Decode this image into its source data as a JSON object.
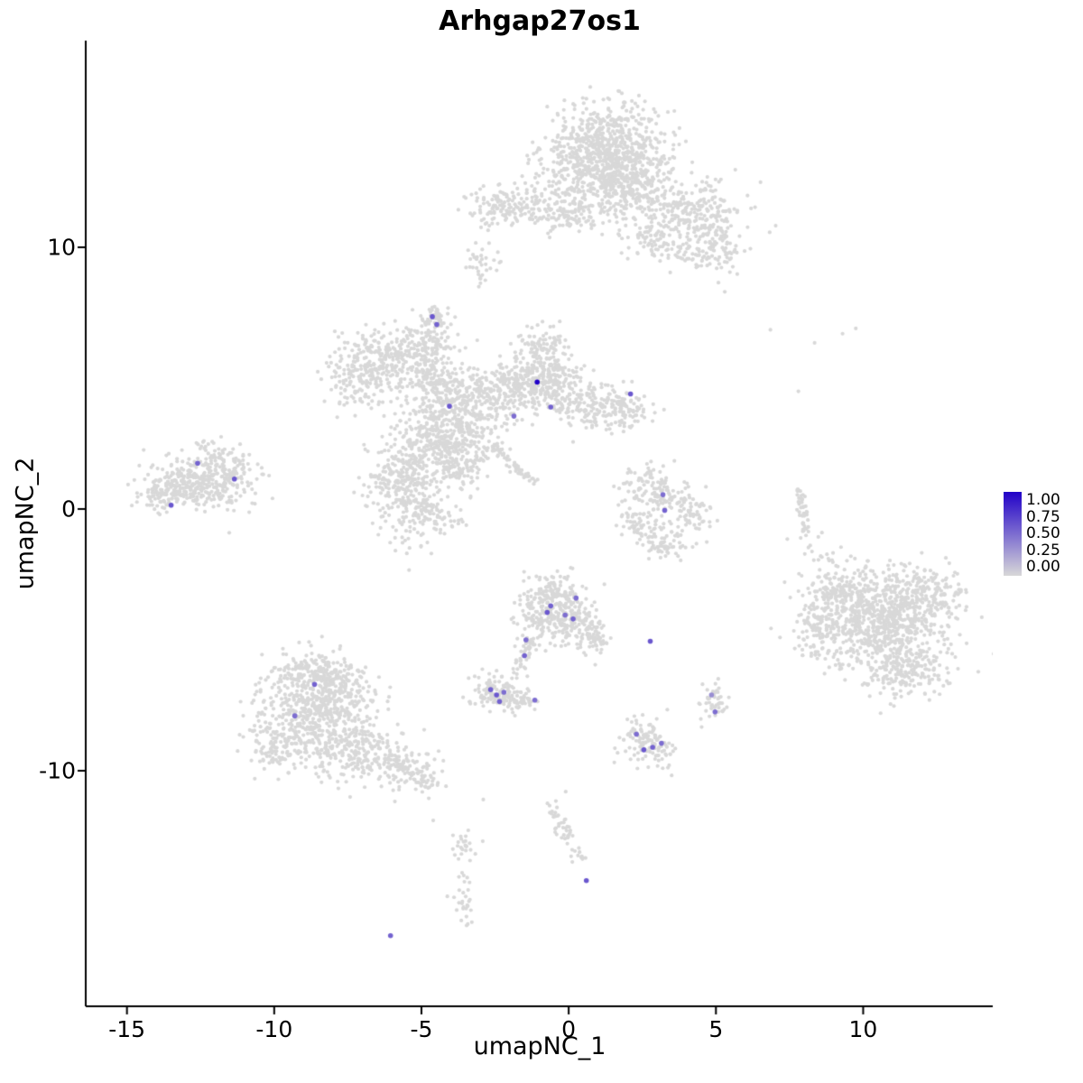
{
  "chart_data": {
    "type": "scatter",
    "title": "Arhgap27os1",
    "xlabel": "umapNC_1",
    "ylabel": "umapNC_2",
    "xlim": [
      -16.4,
      14.4
    ],
    "ylim": [
      -19.0,
      17.9
    ],
    "grid": false,
    "legend_position": "right",
    "x_ticks": {
      "values": [
        -15,
        -10,
        -5,
        0,
        5,
        10
      ],
      "labels": [
        "-15",
        "-10",
        "-5",
        "0",
        "5",
        "10"
      ]
    },
    "y_ticks": {
      "values": [
        10,
        0,
        -10
      ],
      "labels": [
        "10",
        "0",
        "-10"
      ]
    },
    "color_scale": {
      "min": 0.0,
      "max": 1.0,
      "low": "#D8D8D8",
      "high": "#2101C8",
      "legend_labels": [
        "1.00",
        "0.75",
        "0.50",
        "0.25",
        "0.00"
      ]
    },
    "style": {
      "point_color": "#D8D8D8",
      "point_radius": 2.1,
      "highlight_radius": 2.8,
      "axis_color": "#000000"
    },
    "clusters": [
      {
        "cx": 1.3,
        "cy": 13.8,
        "sx": 1.05,
        "sy": 0.85,
        "n": 650
      },
      {
        "cx": 1.0,
        "cy": 12.9,
        "sx": 0.9,
        "sy": 0.6,
        "n": 200
      },
      {
        "cx": 2.3,
        "cy": 12.3,
        "sx": 0.8,
        "sy": 0.6,
        "n": 220
      },
      {
        "cx": 4.3,
        "cy": 11.4,
        "sx": 0.85,
        "sy": 0.55,
        "n": 220
      },
      {
        "cx": 4.9,
        "cy": 9.9,
        "sx": 0.5,
        "sy": 0.5,
        "n": 110
      },
      {
        "cx": -1.9,
        "cy": 11.6,
        "sx": 0.75,
        "sy": 0.4,
        "n": 160
      },
      {
        "cx": 0.1,
        "cy": 11.4,
        "sx": 0.75,
        "sy": 0.45,
        "n": 140
      },
      {
        "cx": 3.0,
        "cy": 10.4,
        "sx": 0.55,
        "sy": 0.45,
        "n": 110
      },
      {
        "cx": -2.9,
        "cy": 9.3,
        "sx": 0.25,
        "sy": 0.5,
        "n": 35
      },
      {
        "cx": -4.2,
        "cy": 3.2,
        "sx": 0.85,
        "sy": 0.85,
        "n": 450
      },
      {
        "cx": -6.3,
        "cy": 5.8,
        "sx": 0.75,
        "sy": 0.55,
        "n": 220
      },
      {
        "cx": -7.3,
        "cy": 4.9,
        "sx": 0.5,
        "sy": 0.5,
        "n": 110
      },
      {
        "cx": -4.8,
        "cy": 6.3,
        "sx": 0.45,
        "sy": 0.55,
        "n": 130
      },
      {
        "cx": -4.5,
        "cy": 7.3,
        "sx": 0.22,
        "sy": 0.25,
        "n": 45
      },
      {
        "cx": -4.6,
        "cy": 4.9,
        "sx": 0.5,
        "sy": 0.5,
        "n": 120
      },
      {
        "cx": -2.6,
        "cy": 4.6,
        "sx": 0.7,
        "sy": 0.55,
        "n": 220
      },
      {
        "cx": -0.9,
        "cy": 4.9,
        "sx": 0.65,
        "sy": 0.6,
        "n": 260
      },
      {
        "cx": -1.0,
        "cy": 6.1,
        "sx": 0.45,
        "sy": 0.5,
        "n": 100
      },
      {
        "cx": 0.8,
        "cy": 3.9,
        "sx": 0.75,
        "sy": 0.45,
        "n": 180
      },
      {
        "cx": 2.0,
        "cy": 3.8,
        "sx": 0.45,
        "sy": 0.35,
        "n": 60
      },
      {
        "cx": -5.6,
        "cy": 1.2,
        "sx": 0.65,
        "sy": 0.75,
        "n": 260
      },
      {
        "cx": -5.0,
        "cy": -0.3,
        "sx": 0.55,
        "sy": 0.5,
        "n": 140
      },
      {
        "cx": -3.7,
        "cy": 1.9,
        "sx": 0.5,
        "sy": 0.6,
        "n": 140
      },
      {
        "cx": -12.6,
        "cy": 1.0,
        "sx": 0.85,
        "sy": 0.55,
        "n": 320
      },
      {
        "cx": -13.8,
        "cy": 0.6,
        "sx": 0.4,
        "sy": 0.35,
        "n": 70
      },
      {
        "cx": -11.4,
        "cy": 1.4,
        "sx": 0.4,
        "sy": 0.35,
        "n": 70
      },
      {
        "cx": -12.1,
        "cy": 2.2,
        "sx": 0.3,
        "sy": 0.3,
        "n": 35
      },
      {
        "cx": 2.6,
        "cy": 0.9,
        "sx": 0.5,
        "sy": 0.4,
        "n": 80
      },
      {
        "cx": 3.4,
        "cy": 0.3,
        "sx": 0.45,
        "sy": 0.45,
        "n": 80
      },
      {
        "cx": 2.4,
        "cy": -0.6,
        "sx": 0.4,
        "sy": 0.4,
        "n": 60
      },
      {
        "cx": 3.3,
        "cy": -1.3,
        "sx": 0.5,
        "sy": 0.3,
        "n": 60
      },
      {
        "cx": 4.3,
        "cy": -0.3,
        "sx": 0.3,
        "sy": 0.4,
        "n": 45
      },
      {
        "cx": 10.6,
        "cy": -4.3,
        "sx": 1.15,
        "sy": 1.05,
        "n": 850
      },
      {
        "cx": 9.0,
        "cy": -3.3,
        "sx": 0.5,
        "sy": 0.55,
        "n": 130
      },
      {
        "cx": 8.4,
        "cy": -4.6,
        "sx": 0.4,
        "sy": 0.5,
        "n": 70
      },
      {
        "cx": 12.2,
        "cy": -3.3,
        "sx": 0.6,
        "sy": 0.55,
        "n": 140
      },
      {
        "cx": 11.6,
        "cy": -6.2,
        "sx": 0.7,
        "sy": 0.5,
        "n": 140
      },
      {
        "cx": 8.6,
        "cy": -1.7,
        "sx": 0.3,
        "sy": 0.25,
        "n": 15
      },
      {
        "cx": -8.6,
        "cy": -7.6,
        "sx": 1.0,
        "sy": 0.85,
        "n": 500
      },
      {
        "cx": -9.7,
        "cy": -9.0,
        "sx": 0.6,
        "sy": 0.55,
        "n": 140
      },
      {
        "cx": -7.2,
        "cy": -9.3,
        "sx": 0.85,
        "sy": 0.5,
        "n": 220
      },
      {
        "cx": -5.6,
        "cy": -9.9,
        "sx": 0.5,
        "sy": 0.4,
        "n": 90
      },
      {
        "cx": -4.9,
        "cy": -10.4,
        "sx": 0.3,
        "sy": 0.25,
        "n": 35
      },
      {
        "cx": -8.9,
        "cy": -6.2,
        "sx": 0.5,
        "sy": 0.4,
        "n": 90
      },
      {
        "cx": -7.9,
        "cy": -6.4,
        "sx": 0.5,
        "sy": 0.45,
        "n": 110
      },
      {
        "cx": -0.7,
        "cy": -3.9,
        "sx": 0.55,
        "sy": 0.6,
        "n": 200
      },
      {
        "cx": 0.3,
        "cy": -4.3,
        "sx": 0.4,
        "sy": 0.5,
        "n": 110
      },
      {
        "cx": -0.3,
        "cy": -3.2,
        "sx": 0.4,
        "sy": 0.3,
        "n": 70
      },
      {
        "cx": 0.9,
        "cy": -4.9,
        "sx": 0.3,
        "sy": 0.35,
        "n": 50
      },
      {
        "cx": -2.5,
        "cy": -7.0,
        "sx": 0.45,
        "sy": 0.35,
        "n": 120
      },
      {
        "cx": -1.6,
        "cy": -7.3,
        "sx": 0.3,
        "sy": 0.25,
        "n": 45
      },
      {
        "cx": 2.7,
        "cy": -9.1,
        "sx": 0.45,
        "sy": 0.4,
        "n": 100
      },
      {
        "cx": 2.3,
        "cy": -8.5,
        "sx": 0.25,
        "sy": 0.25,
        "n": 30
      },
      {
        "cx": 5.0,
        "cy": -7.4,
        "sx": 0.27,
        "sy": 0.3,
        "n": 45
      },
      {
        "cx": -3.6,
        "cy": -12.9,
        "sx": 0.25,
        "sy": 0.33,
        "n": 25
      },
      {
        "cx": -3.5,
        "cy": -15.1,
        "sx": 0.22,
        "sy": 0.5,
        "n": 28
      },
      {
        "cx": 0.2,
        "cy": -13.3,
        "sx": 0.2,
        "sy": 0.2,
        "n": 12
      }
    ],
    "streaks": [
      {
        "x1": 7.8,
        "y1": 0.8,
        "x2": 8.1,
        "y2": -1.0,
        "j": 0.09,
        "n": 45
      },
      {
        "x1": -2.6,
        "y1": 2.4,
        "x2": -1.2,
        "y2": 1.0,
        "j": 0.08,
        "n": 55
      },
      {
        "x1": -1.2,
        "y1": -4.9,
        "x2": -1.8,
        "y2": -6.3,
        "j": 0.12,
        "n": 45
      },
      {
        "x1": -0.6,
        "y1": -11.3,
        "x2": 0.0,
        "y2": -12.7,
        "j": 0.13,
        "n": 40
      }
    ],
    "sparse_points": [
      [
        6.85,
        6.85
      ],
      [
        8.35,
        6.35
      ],
      [
        9.3,
        6.7
      ],
      [
        9.75,
        6.9
      ],
      [
        5.3,
        8.3
      ],
      [
        7.8,
        4.5
      ],
      [
        -2.9,
        -11.1
      ],
      [
        -4.6,
        -11.9
      ],
      [
        8.6,
        -0.9
      ],
      [
        -0.1,
        -10.8
      ]
    ],
    "highlighted_cells": [
      {
        "x": -4.63,
        "y": 7.35,
        "value": 0.6
      },
      {
        "x": -4.48,
        "y": 7.05,
        "value": 0.55
      },
      {
        "x": -1.07,
        "y": 4.85,
        "value": 1.0
      },
      {
        "x": 2.1,
        "y": 4.4,
        "value": 0.6
      },
      {
        "x": -0.61,
        "y": 3.9,
        "value": 0.55
      },
      {
        "x": -1.86,
        "y": 3.55,
        "value": 0.5
      },
      {
        "x": -4.05,
        "y": 3.93,
        "value": 0.6
      },
      {
        "x": -12.6,
        "y": 1.75,
        "value": 0.55
      },
      {
        "x": -11.35,
        "y": 1.15,
        "value": 0.6
      },
      {
        "x": -13.5,
        "y": 0.15,
        "value": 0.6
      },
      {
        "x": 3.2,
        "y": 0.55,
        "value": 0.5
      },
      {
        "x": 3.26,
        "y": -0.05,
        "value": 0.55
      },
      {
        "x": -0.73,
        "y": -3.95,
        "value": 0.6
      },
      {
        "x": -0.12,
        "y": -4.05,
        "value": 0.5
      },
      {
        "x": 0.15,
        "y": -4.2,
        "value": 0.55
      },
      {
        "x": 0.25,
        "y": -3.4,
        "value": 0.5
      },
      {
        "x": -0.61,
        "y": -3.7,
        "value": 0.55
      },
      {
        "x": -1.45,
        "y": -5.0,
        "value": 0.5
      },
      {
        "x": -1.5,
        "y": -5.6,
        "value": 0.55
      },
      {
        "x": 2.77,
        "y": -5.05,
        "value": 0.6
      },
      {
        "x": -2.65,
        "y": -6.9,
        "value": 0.55
      },
      {
        "x": -2.45,
        "y": -7.1,
        "value": 0.6
      },
      {
        "x": -2.2,
        "y": -7.0,
        "value": 0.5
      },
      {
        "x": -2.35,
        "y": -7.35,
        "value": 0.55
      },
      {
        "x": -1.15,
        "y": -7.3,
        "value": 0.5
      },
      {
        "x": -8.63,
        "y": -6.7,
        "value": 0.55
      },
      {
        "x": -9.3,
        "y": -7.9,
        "value": 0.5
      },
      {
        "x": 2.3,
        "y": -8.6,
        "value": 0.5
      },
      {
        "x": 2.55,
        "y": -9.2,
        "value": 0.6
      },
      {
        "x": 2.85,
        "y": -9.1,
        "value": 0.55
      },
      {
        "x": 3.15,
        "y": -8.95,
        "value": 0.5
      },
      {
        "x": 4.85,
        "y": -7.1,
        "value": 0.35
      },
      {
        "x": 4.97,
        "y": -7.75,
        "value": 0.5
      },
      {
        "x": 0.6,
        "y": -14.2,
        "value": 0.6
      },
      {
        "x": -6.05,
        "y": -16.3,
        "value": 0.55
      }
    ]
  }
}
